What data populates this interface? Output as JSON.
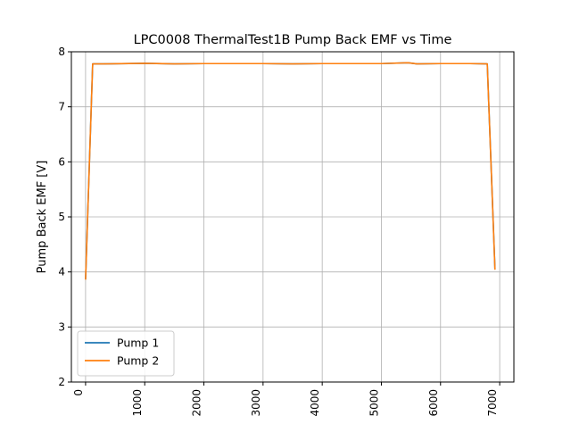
{
  "chart_data": {
    "type": "line",
    "title": "LPC0008 ThermalTest1B Pump Back EMF vs Time",
    "xlabel": "",
    "ylabel": "Pump Back EMF [V]",
    "xlim": [
      -240,
      7240
    ],
    "ylim": [
      2,
      8
    ],
    "xticks": [
      0,
      1000,
      2000,
      3000,
      4000,
      5000,
      6000,
      7000
    ],
    "yticks": [
      2,
      3,
      4,
      5,
      6,
      7,
      8
    ],
    "xtick_rotation": -90,
    "grid": true,
    "legend": {
      "position": "lower-left"
    },
    "series": [
      {
        "name": "Pump 1",
        "color": "#1f77b4",
        "x": [
          0,
          120,
          300,
          1000,
          1500,
          2000,
          2500,
          3000,
          3500,
          4000,
          4500,
          5000,
          5450,
          5600,
          6000,
          6500,
          6790,
          6920
        ],
        "y": [
          3.87,
          7.78,
          7.78,
          7.79,
          7.78,
          7.785,
          7.785,
          7.785,
          7.78,
          7.785,
          7.785,
          7.785,
          7.8,
          7.78,
          7.785,
          7.785,
          7.78,
          4.05
        ]
      },
      {
        "name": "Pump 2",
        "color": "#ff7f0e",
        "x": [
          0,
          120,
          300,
          1000,
          1500,
          2000,
          2500,
          3000,
          3500,
          4000,
          4500,
          5000,
          5450,
          5600,
          6000,
          6500,
          6790,
          6920
        ],
        "y": [
          3.86,
          7.78,
          7.78,
          7.79,
          7.78,
          7.785,
          7.785,
          7.785,
          7.78,
          7.785,
          7.785,
          7.785,
          7.8,
          7.78,
          7.785,
          7.785,
          7.78,
          4.04
        ]
      }
    ]
  }
}
